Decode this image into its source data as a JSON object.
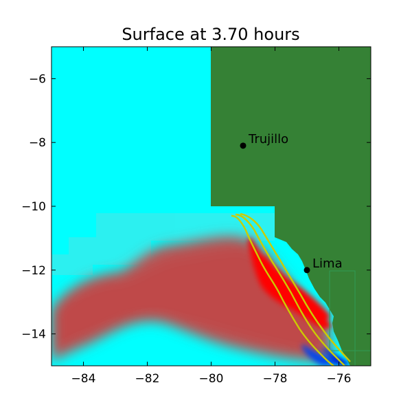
{
  "chart_data": {
    "type": "heatmap",
    "title": "Surface at 3.70 hours",
    "xlabel": "",
    "ylabel": "",
    "xlim": [
      -85,
      -75
    ],
    "ylim": [
      -15,
      -5
    ],
    "x_ticks": [
      -84,
      -82,
      -80,
      -78,
      -76
    ],
    "y_ticks": [
      -14,
      -12,
      -10,
      -8,
      -6
    ],
    "x_tick_labels": [
      "−84",
      "−82",
      "−80",
      "−78",
      "−76"
    ],
    "y_tick_labels": [
      "−14",
      "−12",
      "−10",
      "−8",
      "−6"
    ],
    "grid": false,
    "colors": {
      "background_water": "#00ffff",
      "land": "#358135",
      "wave_high": "#ff0000",
      "wave_mid": "#b06060",
      "wave_low": "#0000cc",
      "contour": "#cccc00"
    },
    "places": [
      {
        "name": "Trujillo",
        "lon": -79.0,
        "lat": -8.1
      },
      {
        "name": "Lima",
        "lon": -77.0,
        "lat": -12.0
      }
    ]
  }
}
